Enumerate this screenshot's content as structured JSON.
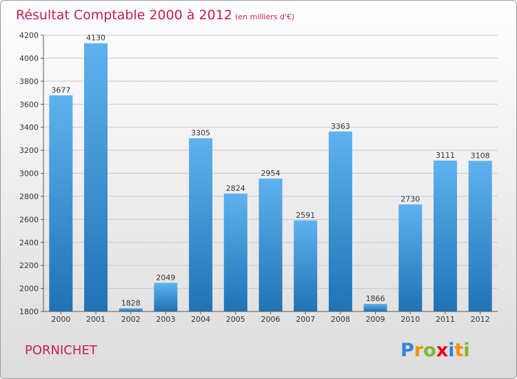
{
  "chart_data": {
    "type": "bar",
    "title": "Résultat Comptable 2000 à 2012",
    "subtitle": "(en milliers d'€)",
    "xlabel": "",
    "ylabel": "",
    "ylim": [
      1800,
      4200
    ],
    "yticks": [
      1800,
      2000,
      2200,
      2400,
      2600,
      2800,
      3000,
      3200,
      3400,
      3600,
      3800,
      4000,
      4200
    ],
    "grid": true,
    "categories": [
      "2000",
      "2001",
      "2002",
      "2003",
      "2004",
      "2005",
      "2006",
      "2007",
      "2008",
      "2009",
      "2010",
      "2011",
      "2012"
    ],
    "values": [
      3677,
      4130,
      1828,
      2049,
      3305,
      2824,
      2954,
      2591,
      3363,
      1866,
      2730,
      3111,
      3108
    ]
  },
  "footer": {
    "city": "PORNICHET",
    "brand_letters": [
      "P",
      "r",
      "o",
      "x",
      "i",
      "t",
      "i"
    ],
    "brand_colors": [
      "#2e86d6",
      "#f39200",
      "#7cb82f",
      "#e2001a",
      "#2e86d6",
      "#f39200",
      "#7cb82f"
    ]
  },
  "colors": {
    "title": "#c41d4e",
    "bar_light": "#5fb2ee",
    "bar_dark": "#1f73b5"
  }
}
